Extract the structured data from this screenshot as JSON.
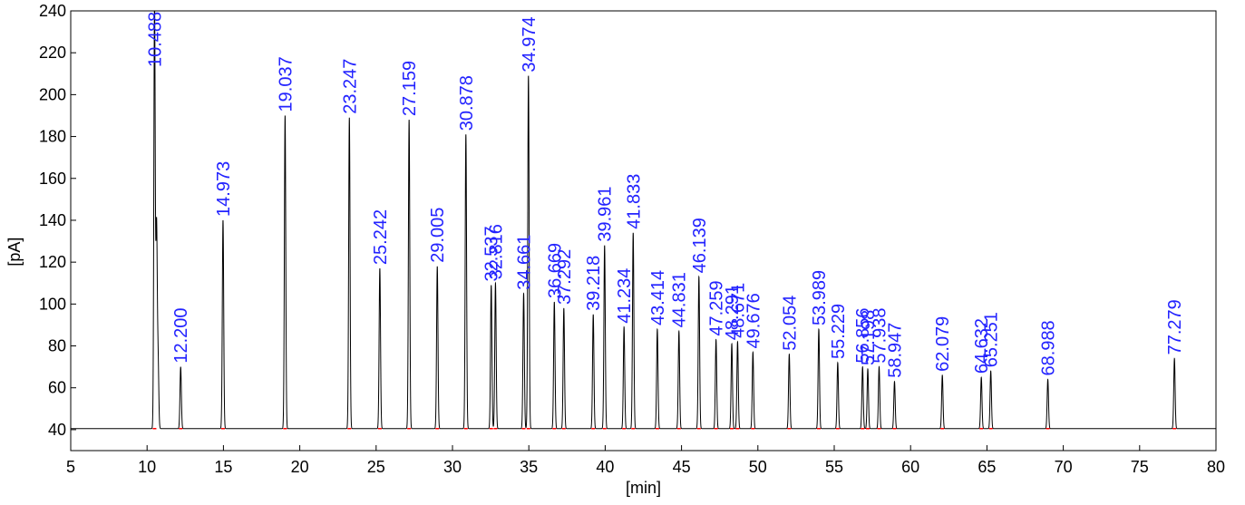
{
  "chart_data": {
    "type": "line",
    "title": "",
    "xlabel": "[min]",
    "ylabel": "[pA]",
    "xlim": [
      5,
      80
    ],
    "ylim": [
      30,
      240
    ],
    "x_ticks": [
      5,
      10,
      15,
      20,
      25,
      30,
      35,
      40,
      45,
      50,
      55,
      60,
      65,
      70,
      75,
      80
    ],
    "y_ticks": [
      40,
      60,
      80,
      100,
      120,
      140,
      160,
      180,
      200,
      220,
      240
    ],
    "grid": false,
    "baseline": 40.5,
    "colors": {
      "trace": "#000000",
      "peak_labels": "#2323ff",
      "integration_marks": "#ff0000",
      "frame": "#000000"
    },
    "series": [
      {
        "peaks": [
          {
            "rt": 10.488,
            "label": "10.488",
            "height": 245
          },
          {
            "rt": 10.62,
            "label": "",
            "height": 136
          },
          {
            "rt": 10.72,
            "label": "",
            "height": 73
          },
          {
            "rt": 12.2,
            "label": "12.200",
            "height": 70
          },
          {
            "rt": 14.973,
            "label": "14.973",
            "height": 140
          },
          {
            "rt": 19.037,
            "label": "19.037",
            "height": 190
          },
          {
            "rt": 23.247,
            "label": "23.247",
            "height": 189
          },
          {
            "rt": 25.242,
            "label": "25.242",
            "height": 117
          },
          {
            "rt": 27.159,
            "label": "27.159",
            "height": 188
          },
          {
            "rt": 29.005,
            "label": "29.005",
            "height": 118
          },
          {
            "rt": 30.878,
            "label": "30.878",
            "height": 181
          },
          {
            "rt": 32.537,
            "label": "32.537",
            "height": 109
          },
          {
            "rt": 32.816,
            "label": "32.816",
            "height": 110
          },
          {
            "rt": 34.661,
            "label": "34.661",
            "height": 105
          },
          {
            "rt": 34.974,
            "label": "34.974",
            "height": 209
          },
          {
            "rt": 36.669,
            "label": "36.669",
            "height": 101
          },
          {
            "rt": 37.292,
            "label": "37.292",
            "height": 98
          },
          {
            "rt": 39.218,
            "label": "39.218",
            "height": 95
          },
          {
            "rt": 39.961,
            "label": "39.961",
            "height": 128
          },
          {
            "rt": 41.234,
            "label": "41.234",
            "height": 89
          },
          {
            "rt": 41.833,
            "label": "41.833",
            "height": 134
          },
          {
            "rt": 43.414,
            "label": "43.414",
            "height": 88
          },
          {
            "rt": 44.831,
            "label": "44.831",
            "height": 87
          },
          {
            "rt": 46.139,
            "label": "46.139",
            "height": 113
          },
          {
            "rt": 47.259,
            "label": "47.259",
            "height": 83
          },
          {
            "rt": 48.291,
            "label": "48.291",
            "height": 81
          },
          {
            "rt": 48.671,
            "label": "48.671",
            "height": 82
          },
          {
            "rt": 49.676,
            "label": "49.676",
            "height": 77
          },
          {
            "rt": 52.054,
            "label": "52.054",
            "height": 76
          },
          {
            "rt": 53.989,
            "label": "53.989",
            "height": 88
          },
          {
            "rt": 55.229,
            "label": "55.229",
            "height": 72
          },
          {
            "rt": 56.856,
            "label": "56.856",
            "height": 70
          },
          {
            "rt": 57.198,
            "label": "57.198",
            "height": 69
          },
          {
            "rt": 57.938,
            "label": "57.938",
            "height": 70
          },
          {
            "rt": 58.947,
            "label": "58.947",
            "height": 63
          },
          {
            "rt": 62.079,
            "label": "62.079",
            "height": 66
          },
          {
            "rt": 64.632,
            "label": "64.632",
            "height": 65
          },
          {
            "rt": 65.251,
            "label": "65.251",
            "height": 68
          },
          {
            "rt": 68.988,
            "label": "68.988",
            "height": 64
          },
          {
            "rt": 77.279,
            "label": "77.279",
            "height": 74
          }
        ]
      }
    ]
  }
}
